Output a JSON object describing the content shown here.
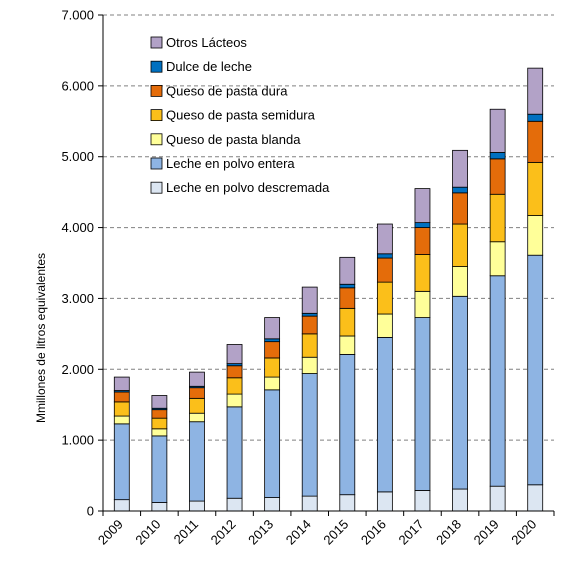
{
  "chart_data": {
    "type": "bar",
    "stacked": true,
    "title": "",
    "xlabel": "",
    "ylabel": "Mmillones de litros equivalentes",
    "ylim": [
      0,
      7000
    ],
    "yticks": [
      0,
      1000,
      2000,
      3000,
      4000,
      5000,
      6000,
      7000
    ],
    "ytick_labels": [
      "0",
      "1.000",
      "2.000",
      "3.000",
      "4.000",
      "5.000",
      "6.000",
      "7.000"
    ],
    "grid": true,
    "legend_position": "top-left",
    "categories": [
      "2009",
      "2010",
      "2011",
      "2012",
      "2013",
      "2014",
      "2015",
      "2016",
      "2017",
      "2018",
      "2019",
      "2020"
    ],
    "series": [
      {
        "name": "Leche en polvo descremada",
        "color": "#dce6f2",
        "values": [
          160,
          120,
          140,
          180,
          190,
          210,
          230,
          270,
          290,
          310,
          350,
          370
        ]
      },
      {
        "name": "Leche en polvo entera",
        "color": "#8eb4e3",
        "values": [
          1070,
          940,
          1120,
          1290,
          1520,
          1730,
          1980,
          2180,
          2440,
          2720,
          2970,
          3240
        ]
      },
      {
        "name": "Queso de pasta blanda",
        "color": "#ffff99",
        "values": [
          110,
          100,
          120,
          180,
          180,
          230,
          260,
          330,
          370,
          420,
          480,
          560
        ]
      },
      {
        "name": "Queso de pasta semidura",
        "color": "#fbbf1a",
        "values": [
          200,
          150,
          210,
          230,
          270,
          330,
          390,
          450,
          520,
          600,
          670,
          750
        ]
      },
      {
        "name": "Queso de pasta dura",
        "color": "#e46c0a",
        "values": [
          140,
          120,
          150,
          170,
          230,
          250,
          290,
          340,
          380,
          440,
          500,
          580
        ]
      },
      {
        "name": "Dulce de leche",
        "color": "#0070c0",
        "values": [
          20,
          20,
          20,
          30,
          40,
          40,
          50,
          60,
          70,
          80,
          90,
          100
        ]
      },
      {
        "name": "Otros Lácteos",
        "color": "#b2a2c7",
        "values": [
          190,
          180,
          200,
          270,
          300,
          370,
          380,
          420,
          480,
          520,
          610,
          650
        ]
      }
    ]
  }
}
